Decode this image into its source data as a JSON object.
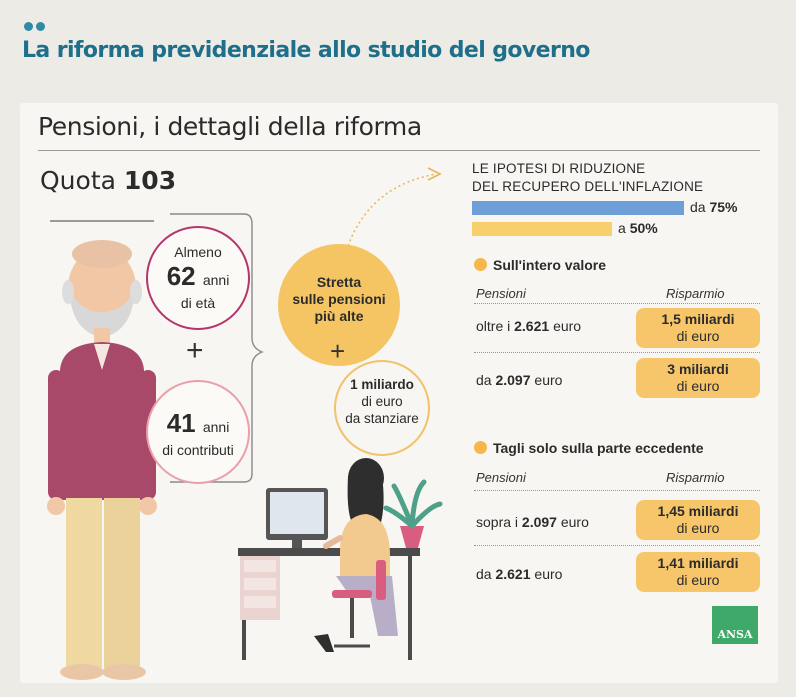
{
  "headline": "La riforma previdenziale allo studio del governo",
  "title": "Pensioni, i dettagli della riforma",
  "quota": {
    "label": "Quota",
    "value": "103"
  },
  "age_circle": {
    "top": "Almeno",
    "number": "62",
    "unit": "anni",
    "bottom": "di età"
  },
  "plus": "+",
  "contrib_circle": {
    "number": "41",
    "unit": "anni",
    "bottom": "di contributi"
  },
  "stretta": {
    "line1": "Stretta",
    "line2": "sulle pensioni",
    "line3": "più alte"
  },
  "fund_circle": {
    "line1": "1 miliardo",
    "line2": "di euro",
    "line3": "da stanziare"
  },
  "inflation": {
    "title_line1": "LE IPOTESI DI RIDUZIONE",
    "title_line2": "DEL RECUPERO DELL'INFLAZIONE",
    "bars": [
      {
        "prefix": "da",
        "value": "75%",
        "fraction": 0.75,
        "color": "#6e9fd6"
      },
      {
        "prefix": "a",
        "value": "50%",
        "fraction": 0.5,
        "color": "#f7cf6c"
      }
    ]
  },
  "section1": {
    "title": "Sull'intero valore",
    "col_pensioni": "Pensioni",
    "col_risparmio": "Risparmio",
    "rows": [
      {
        "prefix": "oltre i",
        "amount": "2.621",
        "suffix": "euro",
        "saving_value": "1,5 miliardi",
        "saving_unit": "di euro"
      },
      {
        "prefix": "da",
        "amount": "2.097",
        "suffix": "euro",
        "saving_value": "3 miliardi",
        "saving_unit": "di euro"
      }
    ]
  },
  "section2": {
    "title": "Tagli solo sulla parte eccedente",
    "col_pensioni": "Pensioni",
    "col_risparmio": "Risparmio",
    "rows": [
      {
        "prefix": "sopra i",
        "amount": "2.097",
        "suffix": "euro",
        "saving_value": "1,45 miliardi",
        "saving_unit": "di euro"
      },
      {
        "prefix": "da",
        "amount": "2.621",
        "suffix": "euro",
        "saving_value": "1,41 miliardi",
        "saving_unit": "di euro"
      }
    ]
  },
  "logo": "ANSA",
  "colors": {
    "accent": "#1f6f8b",
    "yellow": "#f5c564",
    "magenta": "#b5356d",
    "blue": "#6e9fd6",
    "green": "#3fa96a"
  }
}
